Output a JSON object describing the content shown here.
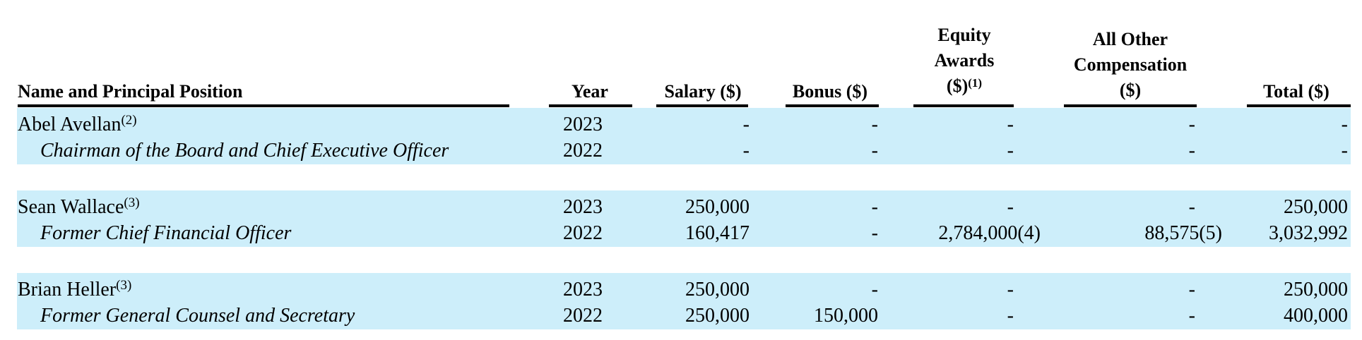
{
  "headers": {
    "name": "Name and Principal Position",
    "year": "Year",
    "salary": "Salary ($)",
    "bonus": "Bonus ($)",
    "equity_line1": "Equity",
    "equity_line2": "Awards",
    "equity_line3": "($)",
    "equity_note": "(1)",
    "other_line1": "All Other",
    "other_line2": "Compensation",
    "other_line3": "($)",
    "total": "Total ($)"
  },
  "rows": [
    {
      "name": "Abel Avellan",
      "note": "(2)",
      "title": "Chairman of the Board and Chief Executive Officer",
      "years": [
        {
          "year": "2023",
          "salary": "-",
          "bonus": "-",
          "equity": "-",
          "other": "-",
          "total": "-"
        },
        {
          "year": "2022",
          "salary": "-",
          "bonus": "-",
          "equity": "-",
          "other": "-",
          "total": "-"
        }
      ]
    },
    {
      "name": "Sean Wallace",
      "note": "(3)",
      "title": "Former Chief Financial Officer",
      "years": [
        {
          "year": "2023",
          "salary": "250,000",
          "bonus": "-",
          "equity": "-",
          "other": "-",
          "total": "250,000"
        },
        {
          "year": "2022",
          "salary": "160,417",
          "bonus": "-",
          "equity": "2,784,000(4)",
          "other": "88,575(5)",
          "total": "3,032,992"
        }
      ]
    },
    {
      "name": "Brian Heller",
      "note": "(3)",
      "title": "Former General Counsel and Secretary",
      "years": [
        {
          "year": "2023",
          "salary": "250,000",
          "bonus": "-",
          "equity": "-",
          "other": "-",
          "total": "250,000"
        },
        {
          "year": "2022",
          "salary": "250,000",
          "bonus": "150,000",
          "equity": "-",
          "other": "-",
          "total": "400,000"
        }
      ]
    }
  ]
}
